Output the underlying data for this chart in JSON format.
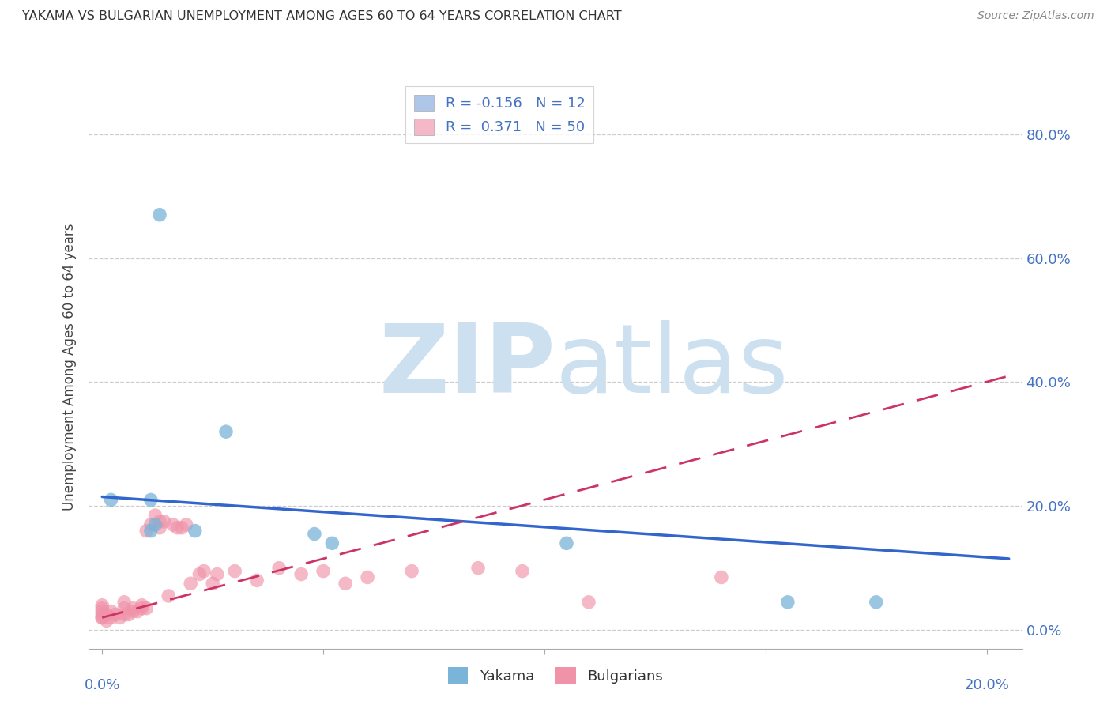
{
  "title": "YAKAMA VS BULGARIAN UNEMPLOYMENT AMONG AGES 60 TO 64 YEARS CORRELATION CHART",
  "source": "Source: ZipAtlas.com",
  "ylabel": "Unemployment Among Ages 60 to 64 years",
  "ytick_labels": [
    "0.0%",
    "20.0%",
    "40.0%",
    "60.0%",
    "80.0%"
  ],
  "ytick_values": [
    0.0,
    0.2,
    0.4,
    0.6,
    0.8
  ],
  "xlim": [
    -0.003,
    0.208
  ],
  "ylim": [
    -0.03,
    0.88
  ],
  "legend_r1": "R = -0.156   N = 12",
  "legend_r2": "R =  0.371   N = 50",
  "legend_color1": "#aec6e8",
  "legend_color2": "#f4b8c8",
  "yakama_color": "#7ab4d8",
  "bulgarian_color": "#f093a8",
  "yakama_line_color": "#3366cc",
  "bulgarian_line_color": "#cc3366",
  "watermark_zip": "ZIP",
  "watermark_atlas": "atlas",
  "watermark_color": "#cde0f0",
  "background_color": "#ffffff",
  "grid_color": "#cccccc",
  "title_color": "#333333",
  "axis_label_color": "#4472c4",
  "yakama_line_x0": 0.0,
  "yakama_line_y0": 0.215,
  "yakama_line_x1": 0.205,
  "yakama_line_y1": 0.115,
  "bulgarian_line_x0": 0.0,
  "bulgarian_line_y0": 0.02,
  "bulgarian_line_x1": 0.205,
  "bulgarian_line_y1": 0.41,
  "yakama_points": [
    [
      0.013,
      0.67
    ],
    [
      0.028,
      0.32
    ],
    [
      0.002,
      0.21
    ],
    [
      0.011,
      0.21
    ],
    [
      0.012,
      0.17
    ],
    [
      0.011,
      0.16
    ],
    [
      0.021,
      0.16
    ],
    [
      0.048,
      0.155
    ],
    [
      0.052,
      0.14
    ],
    [
      0.105,
      0.14
    ],
    [
      0.155,
      0.045
    ],
    [
      0.175,
      0.045
    ]
  ],
  "bulgarian_points": [
    [
      0.0,
      0.025
    ],
    [
      0.0,
      0.03
    ],
    [
      0.0,
      0.02
    ],
    [
      0.0,
      0.035
    ],
    [
      0.0,
      0.04
    ],
    [
      0.0,
      0.02
    ],
    [
      0.001,
      0.025
    ],
    [
      0.001,
      0.015
    ],
    [
      0.002,
      0.03
    ],
    [
      0.002,
      0.02
    ],
    [
      0.003,
      0.025
    ],
    [
      0.004,
      0.02
    ],
    [
      0.005,
      0.035
    ],
    [
      0.005,
      0.045
    ],
    [
      0.005,
      0.025
    ],
    [
      0.006,
      0.025
    ],
    [
      0.007,
      0.03
    ],
    [
      0.007,
      0.035
    ],
    [
      0.008,
      0.03
    ],
    [
      0.009,
      0.035
    ],
    [
      0.009,
      0.04
    ],
    [
      0.01,
      0.035
    ],
    [
      0.01,
      0.16
    ],
    [
      0.011,
      0.17
    ],
    [
      0.012,
      0.185
    ],
    [
      0.013,
      0.175
    ],
    [
      0.013,
      0.165
    ],
    [
      0.014,
      0.175
    ],
    [
      0.015,
      0.055
    ],
    [
      0.016,
      0.17
    ],
    [
      0.017,
      0.165
    ],
    [
      0.018,
      0.165
    ],
    [
      0.019,
      0.17
    ],
    [
      0.02,
      0.075
    ],
    [
      0.022,
      0.09
    ],
    [
      0.023,
      0.095
    ],
    [
      0.025,
      0.075
    ],
    [
      0.026,
      0.09
    ],
    [
      0.03,
      0.095
    ],
    [
      0.035,
      0.08
    ],
    [
      0.04,
      0.1
    ],
    [
      0.045,
      0.09
    ],
    [
      0.05,
      0.095
    ],
    [
      0.055,
      0.075
    ],
    [
      0.06,
      0.085
    ],
    [
      0.07,
      0.095
    ],
    [
      0.085,
      0.1
    ],
    [
      0.095,
      0.095
    ],
    [
      0.11,
      0.045
    ],
    [
      0.14,
      0.085
    ]
  ]
}
